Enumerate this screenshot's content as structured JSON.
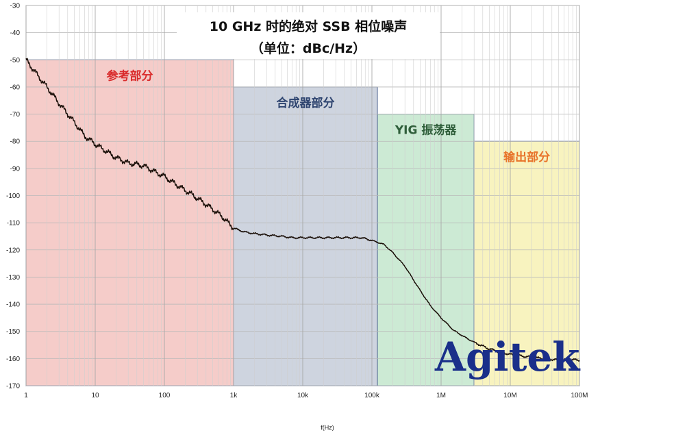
{
  "chart_data": {
    "type": "line",
    "title": "10 GHz 时的绝对 SSB 相位噪声",
    "subtitle": "（单位：dBc/Hz）",
    "xlabel": "f(Hz)",
    "ylabel": "",
    "x_scale": "log",
    "xlim": [
      1,
      100000000
    ],
    "ylim": [
      -170,
      -30
    ],
    "grid": true,
    "x_ticks": [
      {
        "value": 1,
        "label": "1"
      },
      {
        "value": 10,
        "label": "10"
      },
      {
        "value": 100,
        "label": "100"
      },
      {
        "value": 1000,
        "label": "1k"
      },
      {
        "value": 10000,
        "label": "10k"
      },
      {
        "value": 100000,
        "label": "100k"
      },
      {
        "value": 1000000,
        "label": "1M"
      },
      {
        "value": 10000000,
        "label": "10M"
      },
      {
        "value": 100000000,
        "label": "100M"
      }
    ],
    "y_ticks": [
      -30,
      -40,
      -50,
      -60,
      -70,
      -80,
      -90,
      -100,
      -110,
      -120,
      -130,
      -140,
      -150,
      -160,
      -170
    ],
    "regions": [
      {
        "label": "参考部分",
        "x_start": 1,
        "x_end": 1000,
        "y_top": -50,
        "fill": "#f4c7c3",
        "label_color": "#d92b2b"
      },
      {
        "label": "合成器部分",
        "x_start": 1000,
        "x_end": 120000,
        "y_top": -60,
        "fill": "#c9cfdb",
        "label_color": "#2f4570"
      },
      {
        "label": "YIG 振荡器",
        "x_start": 120000,
        "x_end": 3000000,
        "y_top": -70,
        "fill": "#c6e8cf",
        "label_color": "#2f5e3a"
      },
      {
        "label": "输出部分",
        "x_start": 3000000,
        "x_end": 100000000,
        "y_top": -80,
        "fill": "#f7f2b8",
        "label_color": "#e8732a"
      }
    ],
    "series": [
      {
        "x": [
          1,
          1.5,
          2,
          3,
          5,
          7,
          10,
          15,
          20,
          30,
          50,
          70,
          100,
          150,
          200,
          300,
          500,
          700,
          1000,
          1500,
          2000,
          3000,
          5000,
          7000,
          10000,
          20000,
          30000,
          50000,
          70000,
          100000,
          150000,
          200000,
          300000,
          500000,
          700000,
          1000000,
          1500000,
          2000000,
          3000000,
          5000000,
          7000000,
          10000000,
          20000000,
          30000000,
          50000000,
          100000000
        ],
        "y": [
          -50,
          -56,
          -60,
          -66,
          -73,
          -78,
          -81,
          -84,
          -86,
          -88,
          -89,
          -91,
          -93,
          -96,
          -98,
          -101,
          -105,
          -108,
          -112,
          -113.5,
          -114,
          -114.5,
          -115,
          -115.5,
          -115.5,
          -115.5,
          -115.5,
          -115.5,
          -115.5,
          -116.5,
          -118,
          -121,
          -126,
          -135,
          -140.5,
          -145,
          -149.5,
          -151.5,
          -154,
          -156.5,
          -157.5,
          -158.5,
          -159.5,
          -160,
          -160.5,
          -160.5
        ]
      }
    ],
    "line_color": "#1a0f08"
  },
  "watermark": "Agitek"
}
